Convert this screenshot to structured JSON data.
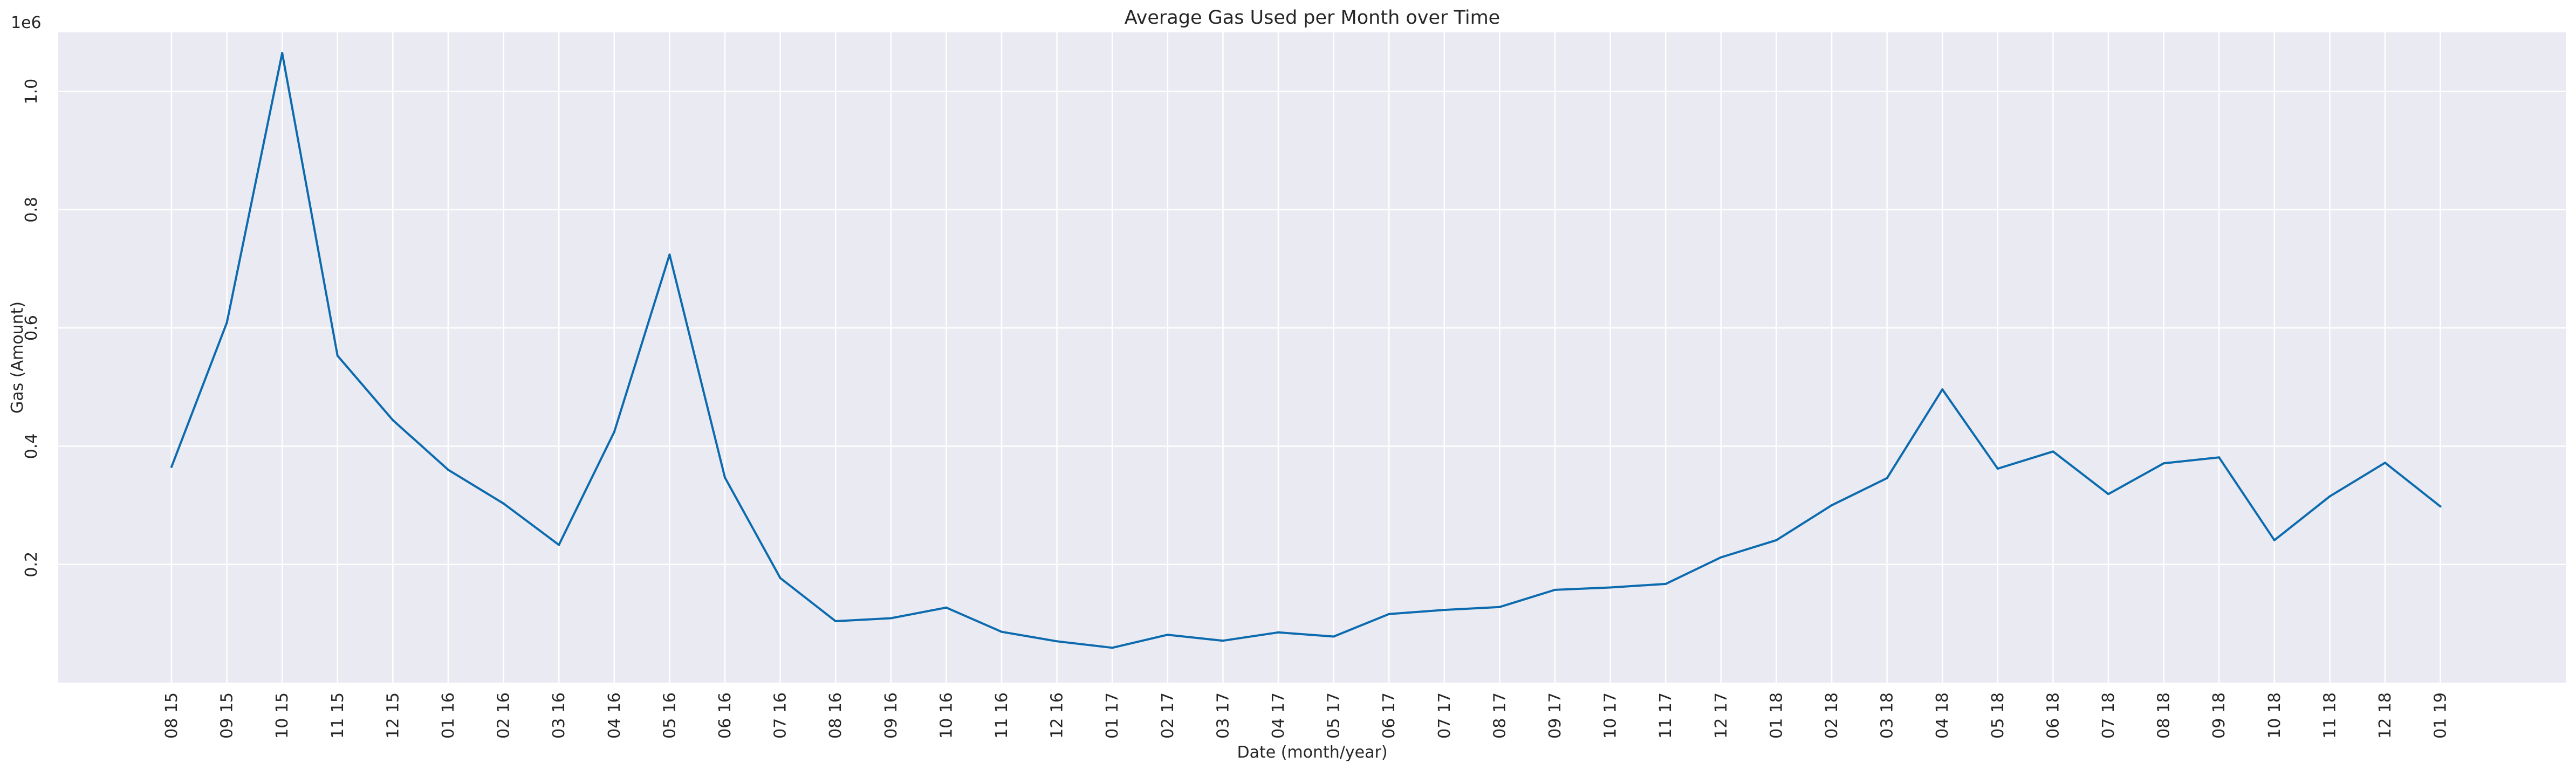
{
  "chart_data": {
    "type": "line",
    "title": "Average Gas Used per Month over Time",
    "xlabel": "Date (month/year)",
    "ylabel": "Gas (Amount)",
    "y_offset_text": "1e6",
    "categories": [
      "08 15",
      "09 15",
      "10 15",
      "11 15",
      "12 15",
      "01 16",
      "02 16",
      "03 16",
      "04 16",
      "05 16",
      "06 16",
      "07 16",
      "08 16",
      "09 16",
      "10 16",
      "11 16",
      "12 16",
      "01 17",
      "02 17",
      "03 17",
      "04 17",
      "05 17",
      "06 17",
      "07 17",
      "08 17",
      "09 17",
      "10 17",
      "11 17",
      "12 17",
      "01 18",
      "02 18",
      "03 18",
      "04 18",
      "05 18",
      "06 18",
      "07 18",
      "08 18",
      "09 18",
      "10 18",
      "11 18",
      "12 18",
      "01 19"
    ],
    "series": [
      {
        "values": [
          365000,
          609000,
          1065000,
          553000,
          444000,
          360000,
          303000,
          233000,
          424000,
          724000,
          347000,
          177000,
          104000,
          109000,
          127000,
          86000,
          70000,
          59000,
          81000,
          71000,
          85000,
          78000,
          116000,
          123000,
          128000,
          157000,
          161000,
          167000,
          212000,
          241000,
          300000,
          346000,
          496000,
          362000,
          391000,
          319000,
          371000,
          381000,
          241000,
          315000,
          372000,
          298000
        ],
        "color": "#0c6bae"
      }
    ],
    "yticks": [
      0.2,
      0.4,
      0.6,
      0.8,
      1.0
    ],
    "ylim": [
      0,
      1.1
    ],
    "grid": true,
    "background": "#eaeaf2",
    "grid_color": "#ffffff"
  }
}
